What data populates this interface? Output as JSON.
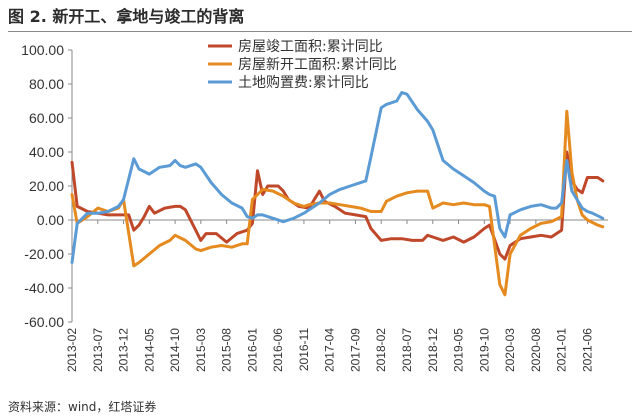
{
  "title": "图 2. 新开工、拿地与竣工的背离",
  "source": "资料来源：wind，红塔证券",
  "colors": {
    "completion": "#c0482a",
    "newstart": "#e58a1f",
    "land": "#5b9bd5",
    "axis": "#8a8a8a"
  },
  "chart_data": {
    "type": "line",
    "title": "图 2. 新开工、拿地与竣工的背离",
    "xlabel": "",
    "ylabel": "",
    "ylim": [
      -60,
      100
    ],
    "yticks": [
      "100.00",
      "80.00",
      "60.00",
      "40.00",
      "20.00",
      "0.00",
      "-20.00",
      "-40.00",
      "-60.00"
    ],
    "x_start": "2013-02",
    "x_end": "2021-10",
    "xticks": [
      "2013-02",
      "2013-07",
      "2013-12",
      "2014-05",
      "2014-10",
      "2015-03",
      "2015-08",
      "2016-01",
      "2016-06",
      "2016-11",
      "2017-04",
      "2017-09",
      "2018-02",
      "2018-07",
      "2018-12",
      "2019-05",
      "2019-10",
      "2020-03",
      "2020-08",
      "2021-01",
      "2021-06"
    ],
    "legend_position": "top-right",
    "grid": false,
    "series": [
      {
        "name": "房屋竣工面积:累计同比",
        "color_key": "completion",
        "points": [
          [
            "2013-02",
            34
          ],
          [
            "2013-03",
            8
          ],
          [
            "2013-05",
            5
          ],
          [
            "2013-07",
            4
          ],
          [
            "2013-09",
            3
          ],
          [
            "2013-11",
            3
          ],
          [
            "2014-01",
            3
          ],
          [
            "2014-02",
            -6
          ],
          [
            "2014-03",
            -3
          ],
          [
            "2014-04",
            2
          ],
          [
            "2014-05",
            8
          ],
          [
            "2014-06",
            4
          ],
          [
            "2014-08",
            7
          ],
          [
            "2014-10",
            8
          ],
          [
            "2014-11",
            8
          ],
          [
            "2014-12",
            6
          ],
          [
            "2015-02",
            -6
          ],
          [
            "2015-03",
            -12
          ],
          [
            "2015-04",
            -8
          ],
          [
            "2015-06",
            -8
          ],
          [
            "2015-08",
            -13
          ],
          [
            "2015-10",
            -8
          ],
          [
            "2015-12",
            -6
          ],
          [
            "2016-01",
            -2
          ],
          [
            "2016-02",
            29
          ],
          [
            "2016-03",
            15
          ],
          [
            "2016-04",
            20
          ],
          [
            "2016-06",
            20
          ],
          [
            "2016-07",
            17
          ],
          [
            "2016-08",
            12
          ],
          [
            "2016-10",
            8
          ],
          [
            "2016-12",
            7
          ],
          [
            "2017-02",
            17
          ],
          [
            "2017-03",
            11
          ],
          [
            "2017-05",
            8
          ],
          [
            "2017-07",
            4
          ],
          [
            "2017-09",
            3
          ],
          [
            "2017-11",
            2
          ],
          [
            "2017-12",
            -5
          ],
          [
            "2018-02",
            -12
          ],
          [
            "2018-04",
            -11
          ],
          [
            "2018-06",
            -11
          ],
          [
            "2018-08",
            -12
          ],
          [
            "2018-10",
            -12
          ],
          [
            "2018-11",
            -9
          ],
          [
            "2018-12",
            -10
          ],
          [
            "2019-02",
            -12
          ],
          [
            "2019-04",
            -10
          ],
          [
            "2019-06",
            -13
          ],
          [
            "2019-08",
            -10
          ],
          [
            "2019-10",
            -5
          ],
          [
            "2019-11",
            -3
          ],
          [
            "2020-01",
            -20
          ],
          [
            "2020-02",
            -23
          ],
          [
            "2020-03",
            -15
          ],
          [
            "2020-05",
            -11
          ],
          [
            "2020-07",
            -10
          ],
          [
            "2020-09",
            -9
          ],
          [
            "2020-11",
            -10
          ],
          [
            "2021-01",
            -6
          ],
          [
            "2021-02",
            40
          ],
          [
            "2021-03",
            23
          ],
          [
            "2021-04",
            18
          ],
          [
            "2021-05",
            16
          ],
          [
            "2021-06",
            25
          ],
          [
            "2021-08",
            25
          ],
          [
            "2021-09",
            23
          ]
        ]
      },
      {
        "name": "房屋新开工面积:累计同比",
        "color_key": "newstart",
        "points": [
          [
            "2013-02",
            15
          ],
          [
            "2013-03",
            -2
          ],
          [
            "2013-05",
            2
          ],
          [
            "2013-07",
            7
          ],
          [
            "2013-09",
            5
          ],
          [
            "2013-11",
            7
          ],
          [
            "2013-12",
            12
          ],
          [
            "2014-02",
            -27
          ],
          [
            "2014-03",
            -25
          ],
          [
            "2014-05",
            -20
          ],
          [
            "2014-07",
            -15
          ],
          [
            "2014-09",
            -12
          ],
          [
            "2014-10",
            -9
          ],
          [
            "2014-12",
            -12
          ],
          [
            "2015-02",
            -17
          ],
          [
            "2015-03",
            -18
          ],
          [
            "2015-05",
            -16
          ],
          [
            "2015-07",
            -15
          ],
          [
            "2015-09",
            -16
          ],
          [
            "2015-11",
            -14
          ],
          [
            "2015-12",
            -14
          ],
          [
            "2016-01",
            12
          ],
          [
            "2016-02",
            15
          ],
          [
            "2016-03",
            18
          ],
          [
            "2016-05",
            17
          ],
          [
            "2016-07",
            14
          ],
          [
            "2016-09",
            10
          ],
          [
            "2016-11",
            8
          ],
          [
            "2016-12",
            9
          ],
          [
            "2017-02",
            10
          ],
          [
            "2017-04",
            10
          ],
          [
            "2017-06",
            9
          ],
          [
            "2017-08",
            8
          ],
          [
            "2017-10",
            7
          ],
          [
            "2017-12",
            5
          ],
          [
            "2018-02",
            5
          ],
          [
            "2018-03",
            11
          ],
          [
            "2018-05",
            14
          ],
          [
            "2018-07",
            16
          ],
          [
            "2018-09",
            17
          ],
          [
            "2018-11",
            17
          ],
          [
            "2018-12",
            7
          ],
          [
            "2019-02",
            10
          ],
          [
            "2019-04",
            9
          ],
          [
            "2019-06",
            10
          ],
          [
            "2019-08",
            9
          ],
          [
            "2019-10",
            9
          ],
          [
            "2019-11",
            8
          ],
          [
            "2020-01",
            -38
          ],
          [
            "2020-02",
            -44
          ],
          [
            "2020-03",
            -20
          ],
          [
            "2020-05",
            -9
          ],
          [
            "2020-07",
            -5
          ],
          [
            "2020-09",
            -2
          ],
          [
            "2020-11",
            -1
          ],
          [
            "2021-01",
            2
          ],
          [
            "2021-02",
            64
          ],
          [
            "2021-03",
            28
          ],
          [
            "2021-04",
            12
          ],
          [
            "2021-05",
            3
          ],
          [
            "2021-06",
            0
          ],
          [
            "2021-08",
            -3
          ],
          [
            "2021-09",
            -4
          ]
        ]
      },
      {
        "name": "土地购置费:累计同比",
        "color_key": "land",
        "points": [
          [
            "2013-02",
            -25
          ],
          [
            "2013-03",
            -2
          ],
          [
            "2013-05",
            4
          ],
          [
            "2013-07",
            4
          ],
          [
            "2013-09",
            5
          ],
          [
            "2013-11",
            8
          ],
          [
            "2013-12",
            12
          ],
          [
            "2014-02",
            36
          ],
          [
            "2014-03",
            30
          ],
          [
            "2014-05",
            27
          ],
          [
            "2014-07",
            31
          ],
          [
            "2014-09",
            32
          ],
          [
            "2014-10",
            35
          ],
          [
            "2014-11",
            32
          ],
          [
            "2014-12",
            31
          ],
          [
            "2015-02",
            33
          ],
          [
            "2015-03",
            31
          ],
          [
            "2015-05",
            22
          ],
          [
            "2015-07",
            15
          ],
          [
            "2015-09",
            10
          ],
          [
            "2015-11",
            7
          ],
          [
            "2015-12",
            2
          ],
          [
            "2016-01",
            1
          ],
          [
            "2016-02",
            3
          ],
          [
            "2016-03",
            3
          ],
          [
            "2016-05",
            1
          ],
          [
            "2016-07",
            -1
          ],
          [
            "2016-09",
            1
          ],
          [
            "2016-11",
            4
          ],
          [
            "2016-12",
            6
          ],
          [
            "2017-02",
            10
          ],
          [
            "2017-04",
            15
          ],
          [
            "2017-06",
            18
          ],
          [
            "2017-08",
            20
          ],
          [
            "2017-10",
            22
          ],
          [
            "2017-11",
            23
          ],
          [
            "2017-12",
            37
          ],
          [
            "2018-02",
            66
          ],
          [
            "2018-03",
            68
          ],
          [
            "2018-05",
            70
          ],
          [
            "2018-06",
            75
          ],
          [
            "2018-07",
            74
          ],
          [
            "2018-09",
            65
          ],
          [
            "2018-11",
            58
          ],
          [
            "2018-12",
            53
          ],
          [
            "2019-02",
            35
          ],
          [
            "2019-04",
            30
          ],
          [
            "2019-06",
            26
          ],
          [
            "2019-08",
            22
          ],
          [
            "2019-10",
            17
          ],
          [
            "2019-11",
            15
          ],
          [
            "2019-12",
            14
          ],
          [
            "2020-01",
            -5
          ],
          [
            "2020-02",
            -10
          ],
          [
            "2020-03",
            3
          ],
          [
            "2020-05",
            6
          ],
          [
            "2020-07",
            8
          ],
          [
            "2020-09",
            9
          ],
          [
            "2020-11",
            7
          ],
          [
            "2020-12",
            7
          ],
          [
            "2021-01",
            10
          ],
          [
            "2021-02",
            35
          ],
          [
            "2021-03",
            17
          ],
          [
            "2021-04",
            12
          ],
          [
            "2021-05",
            7
          ],
          [
            "2021-06",
            5
          ],
          [
            "2021-07",
            4
          ],
          [
            "2021-09",
            1
          ]
        ]
      }
    ]
  }
}
